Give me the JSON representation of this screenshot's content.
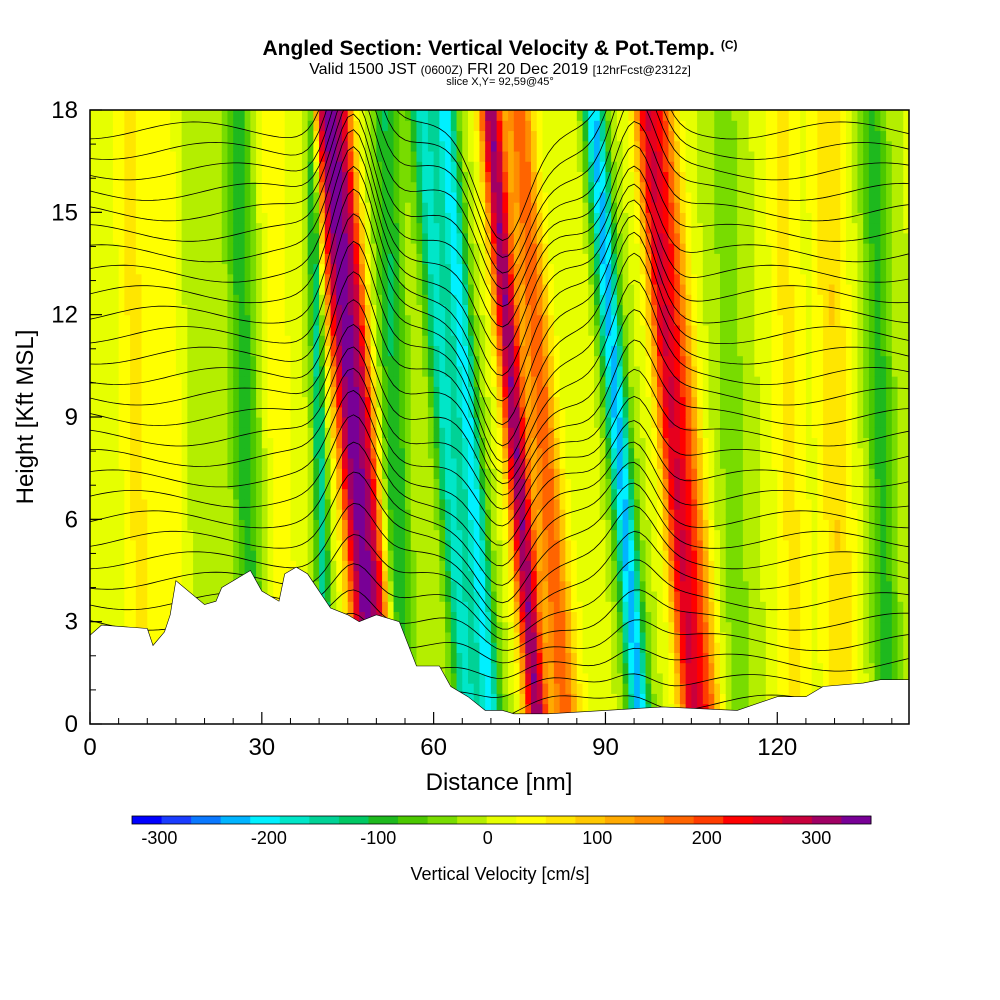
{
  "title": {
    "main": "Angled Section: Vertical Velocity & Pot.Temp.",
    "main_suffix": "(C)",
    "valid_a": "Valid 1500 JST",
    "valid_b": "(0600Z)",
    "valid_c": "FRI 20 Dec 2019",
    "valid_d": "[12hrFcst@2312z]",
    "slice": "slice X,Y= 92,59@45°"
  },
  "chart_data": {
    "type": "heatmap",
    "xlabel": "Distance [nm]",
    "ylabel": "Height [Kft MSL]",
    "xlim": [
      0,
      143
    ],
    "ylim": [
      0,
      18
    ],
    "x_ticks": [
      "0",
      "30",
      "60",
      "90",
      "120"
    ],
    "x_tick_values": [
      0,
      30,
      60,
      90,
      120
    ],
    "y_ticks": [
      "0",
      "3",
      "6",
      "9",
      "12",
      "15",
      "18"
    ],
    "y_tick_values": [
      0,
      3,
      6,
      9,
      12,
      15,
      18
    ],
    "colorbar": {
      "label": "Vertical Velocity [cm/s]",
      "tick_labels": [
        "-300",
        "-200",
        "-100",
        "0",
        "100",
        "200",
        "300"
      ],
      "tick_values": [
        -300,
        -200,
        -100,
        0,
        100,
        200,
        300
      ],
      "range": [
        -325,
        350
      ],
      "colors": [
        "#0000ff",
        "#1a3cff",
        "#0a78ff",
        "#00b4ff",
        "#00f0ff",
        "#00e6c8",
        "#00d296",
        "#00c864",
        "#1eb91e",
        "#4bc800",
        "#78dc00",
        "#b4ee00",
        "#e6ff00",
        "#ffff00",
        "#ffe600",
        "#ffc800",
        "#ffaa00",
        "#ff8c00",
        "#ff6400",
        "#ff3c00",
        "#ff0000",
        "#e6001e",
        "#c8003c",
        "#a00064",
        "#780096"
      ]
    },
    "velocity_bands": [
      {
        "x": 8,
        "value": 60,
        "width": 3
      },
      {
        "x": 14,
        "value": 50,
        "width": 2.5
      },
      {
        "x": 19,
        "value": -20,
        "width": 3
      },
      {
        "x": 27,
        "value": -95,
        "width": 2.5
      },
      {
        "x": 33,
        "value": 45,
        "width": 2.5
      },
      {
        "x": 40,
        "value": -150,
        "width": 1.2
      },
      {
        "x": 45,
        "value": 300,
        "width": 2.4
      },
      {
        "x": 48,
        "value": 220,
        "width": 2
      },
      {
        "x": 53,
        "value": -110,
        "width": 2.5
      },
      {
        "x": 62,
        "value": -175,
        "width": 2.2
      },
      {
        "x": 66,
        "value": -200,
        "width": 2
      },
      {
        "x": 74,
        "value": 320,
        "width": 2
      },
      {
        "x": 79,
        "value": 180,
        "width": 2.5
      },
      {
        "x": 86,
        "value": 15,
        "width": 3
      },
      {
        "x": 92,
        "value": -230,
        "width": 2
      },
      {
        "x": 101,
        "value": 220,
        "width": 2.2
      },
      {
        "x": 104,
        "value": 170,
        "width": 2.5
      },
      {
        "x": 112,
        "value": -40,
        "width": 3
      },
      {
        "x": 122,
        "value": 60,
        "width": 3
      },
      {
        "x": 130,
        "value": 80,
        "width": 3
      },
      {
        "x": 138,
        "value": -90,
        "width": 2.5
      }
    ],
    "terrain_kft": [
      [
        0,
        2.6
      ],
      [
        2,
        2.9
      ],
      [
        10,
        2.8
      ],
      [
        11,
        2.3
      ],
      [
        13,
        2.7
      ],
      [
        14,
        3.2
      ],
      [
        15,
        4.2
      ],
      [
        20,
        3.5
      ],
      [
        22,
        3.6
      ],
      [
        23,
        4.0
      ],
      [
        28,
        4.5
      ],
      [
        30,
        3.9
      ],
      [
        33,
        3.6
      ],
      [
        34,
        4.4
      ],
      [
        36,
        4.6
      ],
      [
        38,
        4.4
      ],
      [
        42,
        3.4
      ],
      [
        45,
        3.2
      ],
      [
        47,
        3.0
      ],
      [
        50,
        3.2
      ],
      [
        54,
        3.0
      ],
      [
        57,
        1.7
      ],
      [
        61,
        1.7
      ],
      [
        63,
        1.1
      ],
      [
        66,
        0.8
      ],
      [
        69,
        0.4
      ],
      [
        70,
        0.4
      ],
      [
        72,
        0.4
      ],
      [
        74,
        0.3
      ],
      [
        80,
        0.3
      ],
      [
        90,
        0.4
      ],
      [
        100,
        0.5
      ],
      [
        113,
        0.4
      ],
      [
        120,
        0.8
      ],
      [
        125,
        0.8
      ],
      [
        128,
        1.1
      ],
      [
        135,
        1.2
      ],
      [
        138,
        1.3
      ],
      [
        143,
        1.3
      ]
    ],
    "theta_contours": {
      "base_values": [
        0,
        0.6,
        1.2,
        1.8,
        2.4,
        3.0,
        3.6,
        4.2,
        4.8,
        5.4,
        6.0,
        6.6,
        7.2,
        7.8,
        8.4,
        9.0,
        9.6,
        10.2,
        10.8,
        11.4,
        12.0,
        12.6,
        13.2,
        13.8,
        14.4,
        15.0,
        15.6,
        16.2,
        16.8,
        17.4
      ],
      "waves": [
        {
          "x": 46,
          "amp": 3.5,
          "width": 5
        },
        {
          "x": 72,
          "amp": -3.0,
          "width": 6
        },
        {
          "x": 95,
          "amp": 2.8,
          "width": 5
        }
      ]
    }
  }
}
